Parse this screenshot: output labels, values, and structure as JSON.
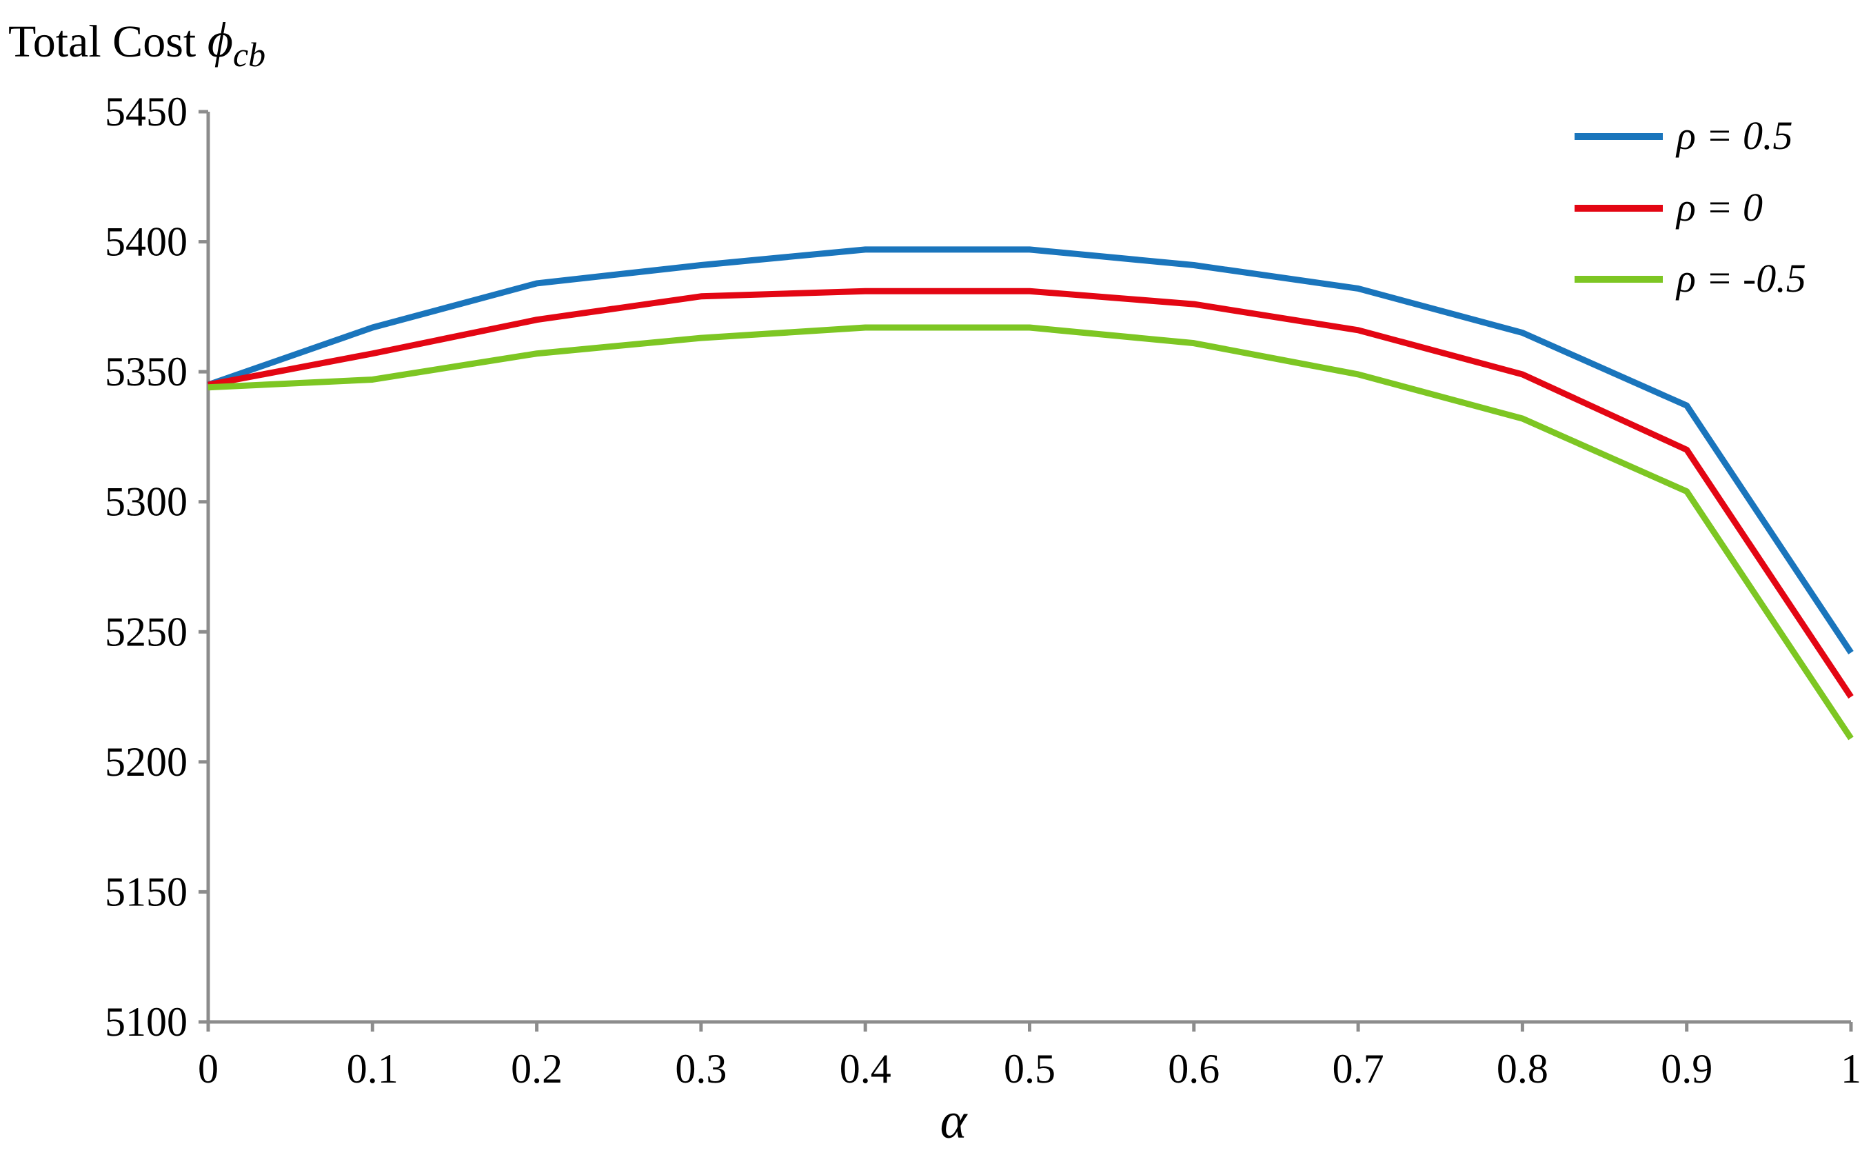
{
  "chart_data": {
    "type": "line",
    "ylabel": {
      "text": "Total Cost ",
      "symbol": "ϕ",
      "subscript": "cb"
    },
    "xlabel": "α",
    "x": [
      0,
      0.1,
      0.2,
      0.3,
      0.4,
      0.5,
      0.6,
      0.7,
      0.8,
      0.9,
      1
    ],
    "x_tick_labels": [
      "0",
      "0.1",
      "0.2",
      "0.3",
      "0.4",
      "0.5",
      "0.6",
      "0.7",
      "0.8",
      "0.9",
      "1"
    ],
    "y_ticks": [
      5100,
      5150,
      5200,
      5250,
      5300,
      5350,
      5400,
      5450
    ],
    "ylim": [
      5100,
      5450
    ],
    "xlim": [
      0,
      1
    ],
    "grid": false,
    "legend_position": "top-right",
    "series": [
      {
        "name": "ρ = 0.5",
        "color": "#1a75bc",
        "values": [
          5345,
          5367,
          5384,
          5391,
          5397,
          5397,
          5391,
          5382,
          5365,
          5337,
          5242
        ]
      },
      {
        "name": "ρ = 0",
        "color": "#e30613",
        "values": [
          5345,
          5357,
          5370,
          5379,
          5381,
          5381,
          5376,
          5366,
          5349,
          5320,
          5225
        ]
      },
      {
        "name": "ρ = -0.5",
        "color": "#7dc623",
        "values": [
          5344,
          5347,
          5357,
          5363,
          5367,
          5367,
          5361,
          5349,
          5332,
          5304,
          5209
        ]
      }
    ]
  }
}
